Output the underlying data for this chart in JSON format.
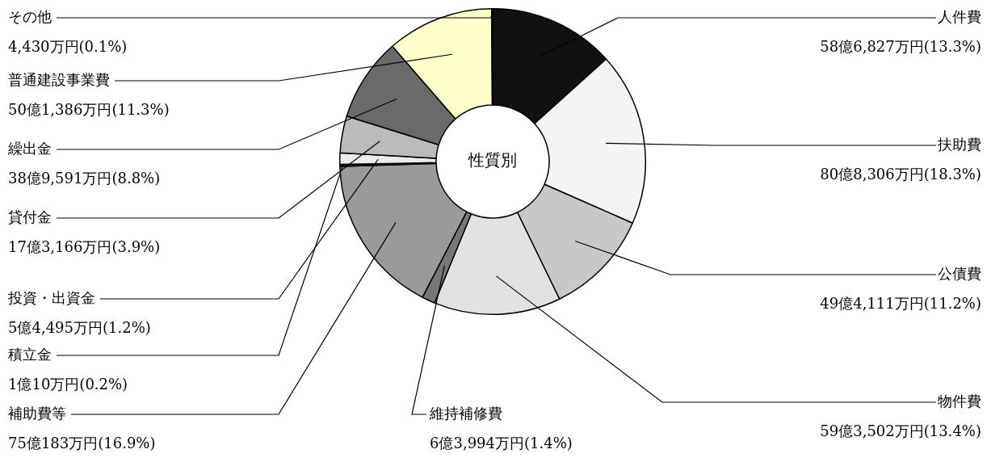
{
  "chart_data": {
    "type": "donut",
    "annotations": [
      "性質別"
    ],
    "categories": [
      "人件費",
      "扶助費",
      "公債費",
      "物件費",
      "維持補修費",
      "補助費等",
      "積立金",
      "投資・出資金",
      "貸付金",
      "繰出金",
      "普通建設事業費",
      "その他"
    ],
    "values": [
      13.3,
      18.3,
      11.2,
      13.4,
      1.4,
      16.9,
      0.2,
      1.2,
      3.9,
      8.8,
      11.3,
      0.1
    ],
    "value_labels": [
      "58億6,827万円(13.3%)",
      "80億8,306万円(18.3%)",
      "49億4,111万円(11.2%)",
      "59億3,502万円(13.4%)",
      "6億3,994万円(1.4%)",
      "75億183万円(16.9%)",
      "1億10万円(0.2%)",
      "5億4,495万円(1.2%)",
      "17億3,166万円(3.9%)",
      "38億9,591万円(8.8%)",
      "50億1,386万円(11.3%)",
      "4,430万円(0.1%)"
    ],
    "colors": [
      "#111111",
      "#f4f4f4",
      "#c8c8c8",
      "#e2e2e2",
      "#777777",
      "#9a9a9a",
      "#333333",
      "#ececec",
      "#bbbbbb",
      "#6a6a6a",
      "#ffffcc",
      "#000000"
    ]
  }
}
